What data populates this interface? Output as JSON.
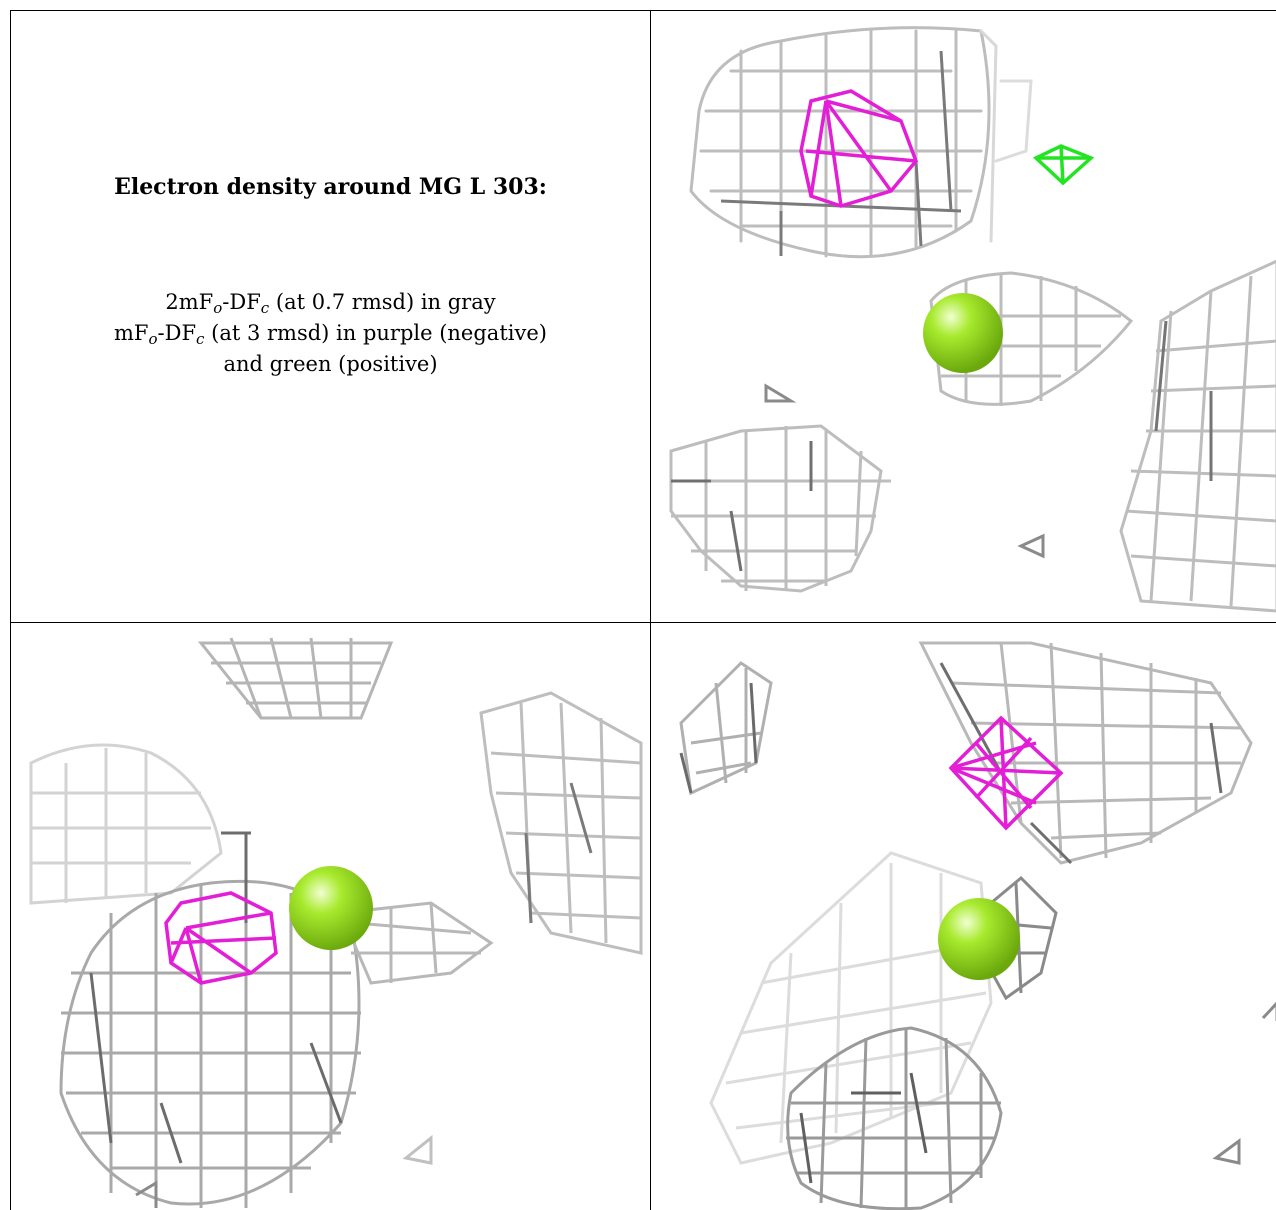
{
  "caption": {
    "title": "Electron density around MG L 303:",
    "line1": {
      "prefix": "2mF",
      "sub1": "o",
      "mid": "-DF",
      "sub2": "c",
      "suffix": " (at 0.7 rmsd) in gray"
    },
    "line2": {
      "prefix": "mF",
      "sub1": "o",
      "mid": "-DF",
      "sub2": "c",
      "suffix": " (at 3 rmsd) in purple (negative)"
    },
    "line3": "and green (positive)"
  },
  "colors": {
    "map_2fofc": "#b4b4b4",
    "map_2fofc_dark": "#6e6e6e",
    "map_fofc_negative": "#e41fd5",
    "map_fofc_positive": "#22e422",
    "mg_ion": "#98e21c"
  },
  "panels": [
    {
      "id": "view-1",
      "contents": [
        "gray-mesh",
        "purple-mesh",
        "green-mesh",
        "mg-sphere"
      ]
    },
    {
      "id": "view-2",
      "contents": [
        "gray-mesh",
        "purple-mesh",
        "mg-sphere"
      ]
    },
    {
      "id": "view-3",
      "contents": [
        "gray-mesh",
        "purple-mesh",
        "mg-sphere"
      ]
    }
  ]
}
